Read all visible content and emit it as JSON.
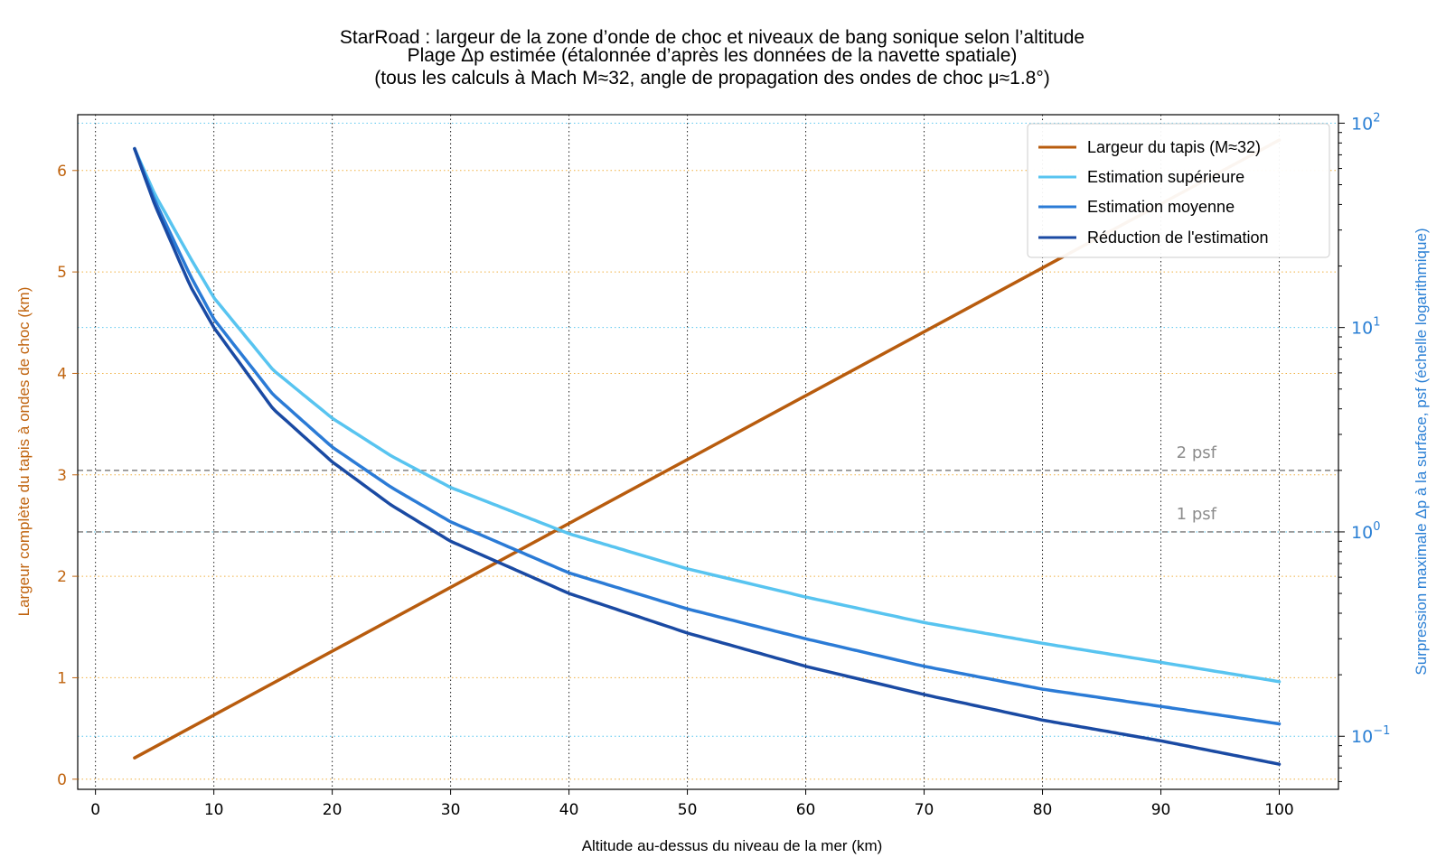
{
  "chart_data": {
    "type": "line",
    "title_lines": [
      "StarRoad : largeur de la zone d’onde de choc et niveaux de bang sonique selon l’altitude",
      "Plage Δp estimée (étalonnée d’après les données de la navette spatiale)",
      "(tous les calculs à Mach M≈32, angle de propagation des ondes de choc μ≈1.8°)"
    ],
    "xlabel": "Altitude au-dessus du niveau de la mer (km)",
    "ylabel_left": "Largeur complète du tapis à ondes de choc (km)",
    "ylabel_right": "Surpression maximale Δp à la surface, psf (échelle logarithmique)",
    "xlim": [
      -1.5,
      105
    ],
    "ylim_left": [
      -0.1,
      6.55
    ],
    "ylim_right_log": [
      0.055,
      110
    ],
    "right_scale": "log",
    "x_ticks": [
      0,
      10,
      20,
      30,
      40,
      50,
      60,
      70,
      80,
      90,
      100
    ],
    "y_left_ticks": [
      0,
      1,
      2,
      3,
      4,
      5,
      6
    ],
    "y_right_ticks": [
      {
        "value": 0.1,
        "base": "10",
        "exp": "−1"
      },
      {
        "value": 1,
        "base": "10",
        "exp": "0"
      },
      {
        "value": 10,
        "base": "10",
        "exp": "1"
      },
      {
        "value": 100,
        "base": "10",
        "exp": "2"
      }
    ],
    "grid": true,
    "legend_position": "top-right",
    "reference_lines": [
      {
        "label": "2 psf",
        "value": 2
      },
      {
        "label": "1 psf",
        "value": 1
      }
    ],
    "series": [
      {
        "name": "Largeur du tapis (M≈32)",
        "axis": "left",
        "color": "#b85c0e",
        "x": [
          3.3,
          100
        ],
        "y": [
          0.21,
          6.3
        ]
      },
      {
        "name": "Estimation supérieure",
        "axis": "right",
        "color": "#58c4f0",
        "x": [
          3.3,
          5,
          8,
          10,
          15,
          20,
          25,
          30,
          40,
          50,
          60,
          70,
          80,
          90,
          100
        ],
        "y": [
          75,
          45,
          22,
          14,
          6.2,
          3.6,
          2.35,
          1.65,
          0.98,
          0.66,
          0.48,
          0.36,
          0.285,
          0.23,
          0.185
        ]
      },
      {
        "name": "Estimation moyenne",
        "axis": "right",
        "color": "#2b7bd6",
        "x": [
          3.3,
          5,
          8,
          10,
          15,
          20,
          25,
          30,
          40,
          50,
          60,
          70,
          80,
          90,
          100
        ],
        "y": [
          75,
          42,
          18,
          11,
          4.7,
          2.6,
          1.65,
          1.12,
          0.63,
          0.42,
          0.3,
          0.22,
          0.17,
          0.14,
          0.115
        ]
      },
      {
        "name": "Réduction de l'estimation",
        "axis": "right",
        "color": "#1a4aa3",
        "x": [
          3.3,
          5,
          8,
          10,
          15,
          20,
          25,
          30,
          40,
          50,
          60,
          70,
          80,
          90,
          100
        ],
        "y": [
          75,
          40,
          16,
          10,
          4.0,
          2.2,
          1.35,
          0.9,
          0.5,
          0.32,
          0.22,
          0.16,
          0.12,
          0.095,
          0.073
        ]
      }
    ]
  },
  "colors": {
    "left_axis": "#c0640f",
    "right_axis": "#2a7fd4",
    "reference": "#8c8c8c",
    "grid_orange": "#f0b040",
    "grid_blue": "#5cc8f0"
  }
}
